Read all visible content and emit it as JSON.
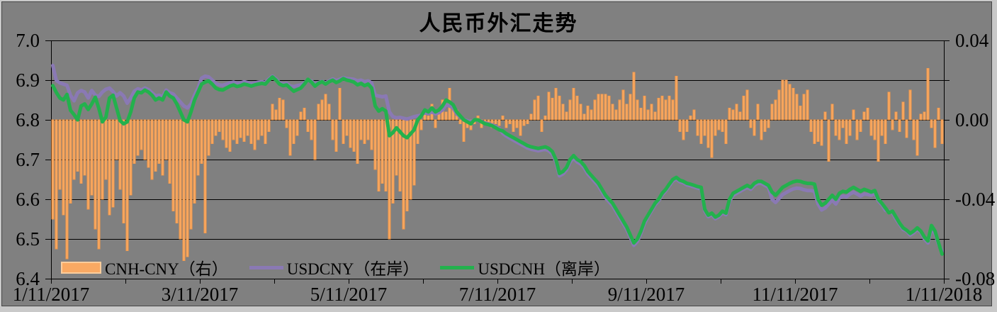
{
  "title": "人民币外汇走势",
  "colors": {
    "background": "#808080",
    "frame_light": "#c9c9c9",
    "frame_dark": "#474747",
    "grid": "#000000",
    "bar_fill": "#F9A963",
    "bar_edge": "#EF9647",
    "bar_swatch_border": "#FBCD9C",
    "usdcny_purple": "#8A79B4",
    "usdcnh_green": "#23B14D",
    "text": "#000000"
  },
  "chart_data": {
    "type": "bar+line combo, dual axis",
    "title": "人民币外汇走势",
    "grid": true,
    "legend_position": "bottom-left-inside",
    "x_tick_labels": [
      "1/11/2017",
      "3/11/2017",
      "5/11/2017",
      "7/11/2017",
      "9/11/2017",
      "11/11/2017",
      "1/11/2018"
    ],
    "left_axis": {
      "min": 6.4,
      "max": 7.0,
      "ticks": [
        "7.0",
        "6.9",
        "6.8",
        "6.7",
        "6.6",
        "6.5",
        "6.4"
      ]
    },
    "right_axis": {
      "min": -0.08,
      "max": 0.04,
      "ticks": [
        "0.04",
        "0.00",
        "-0.04",
        "-0.08"
      ]
    },
    "series": [
      {
        "name": "CNH-CNY（右）",
        "type": "bar",
        "axis": "right",
        "values": [
          -0.05,
          -0.065,
          -0.035,
          -0.048,
          -0.07,
          -0.042,
          -0.03,
          -0.026,
          -0.032,
          -0.028,
          -0.045,
          -0.038,
          -0.055,
          -0.065,
          -0.04,
          -0.03,
          -0.048,
          -0.044,
          -0.02,
          -0.035,
          -0.052,
          -0.066,
          -0.038,
          -0.022,
          -0.018,
          -0.015,
          -0.02,
          -0.024,
          -0.03,
          -0.026,
          -0.022,
          -0.028,
          -0.02,
          -0.032,
          -0.046,
          -0.052,
          -0.06,
          -0.071,
          -0.069,
          -0.055,
          -0.042,
          -0.028,
          -0.022,
          -0.057,
          -0.018,
          -0.012,
          -0.008,
          -0.006,
          -0.01,
          -0.014,
          -0.016,
          -0.01,
          -0.012,
          -0.009,
          -0.011,
          -0.008,
          -0.012,
          -0.015,
          -0.01,
          -0.008,
          -0.012,
          -0.006,
          0.008,
          0.005,
          0.011,
          0.01,
          -0.004,
          -0.018,
          -0.012,
          -0.008,
          0.004,
          0.006,
          -0.006,
          -0.01,
          -0.02,
          0.008,
          0.01,
          0.013,
          0.008,
          -0.01,
          -0.016,
          0.016,
          -0.012,
          -0.008,
          -0.014,
          -0.016,
          -0.022,
          -0.01,
          -0.012,
          -0.01,
          -0.015,
          -0.025,
          -0.036,
          -0.032,
          -0.036,
          -0.06,
          -0.042,
          -0.028,
          -0.036,
          -0.055,
          -0.046,
          -0.04,
          -0.033,
          -0.012,
          -0.005,
          0.005,
          0.002,
          0.008,
          -0.004,
          0.005,
          0.01,
          0.004,
          0.016,
          0.008,
          0.005,
          -0.002,
          -0.011,
          -0.004,
          -0.005,
          -0.002,
          0.002,
          -0.004,
          -0.002,
          -0.003,
          -0.004,
          -0.002,
          -0.003,
          0.002,
          -0.004,
          -0.002,
          -0.006,
          -0.004,
          -0.008,
          -0.003,
          -0.002,
          0.003,
          0.01,
          0.012,
          -0.006,
          0.002,
          0.014,
          0.011,
          0.016,
          0.012,
          0.008,
          0.004,
          0.01,
          0.016,
          0.012,
          0.008,
          0.003,
          0.007,
          0.005,
          0.01,
          0.013,
          0.013,
          0.013,
          0.012,
          0.008,
          0.005,
          0.01,
          0.015,
          0.008,
          0.013,
          0.024,
          0.01,
          0.006,
          0.012,
          0.005,
          0.008,
          0.004,
          0.011,
          0.012,
          0.01,
          0.012,
          0.01,
          0.022,
          -0.006,
          -0.01,
          -0.006,
          0.002,
          0.005,
          -0.008,
          -0.012,
          -0.008,
          -0.014,
          -0.019,
          -0.008,
          -0.005,
          -0.006,
          -0.012,
          0.006,
          0.005,
          0.008,
          0.004,
          0.012,
          0.015,
          -0.004,
          -0.008,
          0.008,
          -0.01,
          -0.006,
          -0.004,
          0.008,
          0.01,
          0.015,
          0.02,
          0.02,
          0.018,
          0.016,
          0.013,
          0.007,
          0.013,
          0.015,
          -0.006,
          -0.012,
          -0.011,
          -0.013,
          0.004,
          -0.021,
          0.008,
          -0.008,
          -0.01,
          -0.004,
          -0.012,
          -0.008,
          0.005,
          -0.01,
          -0.006,
          0.004,
          0.006,
          -0.008,
          -0.01,
          -0.021,
          -0.008,
          -0.012,
          0.014,
          -0.005,
          0.004,
          -0.006,
          0.009,
          -0.009,
          0.015,
          -0.01,
          -0.018,
          0.003,
          0.004,
          0.026,
          -0.004,
          -0.014,
          0.006,
          -0.012
        ]
      },
      {
        "name": "USDCNY（在岸）",
        "type": "line",
        "axis": "left",
        "values": [
          6.937,
          6.899,
          6.893,
          6.89,
          6.887,
          6.862,
          6.848,
          6.868,
          6.874,
          6.87,
          6.855,
          6.874,
          6.862,
          6.859,
          6.87,
          6.877,
          6.88,
          6.871,
          6.86,
          6.868,
          6.86,
          6.842,
          6.855,
          6.872,
          6.878,
          6.875,
          6.88,
          6.876,
          6.868,
          6.86,
          6.862,
          6.858,
          6.875,
          6.868,
          6.865,
          6.855,
          6.845,
          6.835,
          6.83,
          6.84,
          6.862,
          6.88,
          6.905,
          6.91,
          6.908,
          6.9,
          6.892,
          6.888,
          6.887,
          6.89,
          6.893,
          6.895,
          6.892,
          6.893,
          6.896,
          6.894,
          6.891,
          6.893,
          6.895,
          6.896,
          6.894,
          6.903,
          6.91,
          6.903,
          6.893,
          6.89,
          6.892,
          6.885,
          6.884,
          6.886,
          6.888,
          6.893,
          6.9,
          6.898,
          6.89,
          6.894,
          6.897,
          6.893,
          6.898,
          6.903,
          6.899,
          6.902,
          6.906,
          6.904,
          6.903,
          6.902,
          6.898,
          6.9,
          6.896,
          6.898,
          6.893,
          6.862,
          6.86,
          6.858,
          6.86,
          6.82,
          6.808,
          6.805,
          6.806,
          6.804,
          6.802,
          6.805,
          6.808,
          6.81,
          6.812,
          6.818,
          6.816,
          6.82,
          6.815,
          6.818,
          6.825,
          6.838,
          6.835,
          6.83,
          6.815,
          6.808,
          6.8,
          6.798,
          6.795,
          6.8,
          6.799,
          6.796,
          6.792,
          6.79,
          6.787,
          6.783,
          6.778,
          6.766,
          6.759,
          6.754,
          6.749,
          6.744,
          6.739,
          6.734,
          6.729,
          6.726,
          6.724,
          6.722,
          6.724,
          6.726,
          6.722,
          6.714,
          6.694,
          6.659,
          6.664,
          6.674,
          6.694,
          6.704,
          6.694,
          6.689,
          6.679,
          6.664,
          6.654,
          6.644,
          6.634,
          6.619,
          6.604,
          6.594,
          6.584,
          6.569,
          6.554,
          6.539,
          6.524,
          6.504,
          6.484,
          6.494,
          6.514,
          6.539,
          6.556,
          6.571,
          6.586,
          6.596,
          6.611,
          6.621,
          6.634,
          6.646,
          6.651,
          6.644,
          6.641,
          6.636,
          6.634,
          6.631,
          6.628,
          6.626,
          6.571,
          6.556,
          6.561,
          6.551,
          6.556,
          6.566,
          6.561,
          6.595,
          6.61,
          6.615,
          6.62,
          6.625,
          6.63,
          6.625,
          6.635,
          6.64,
          6.64,
          6.635,
          6.63,
          6.6,
          6.592,
          6.602,
          6.612,
          6.617,
          6.622,
          6.626,
          6.628,
          6.627,
          6.624,
          6.622,
          6.622,
          6.62,
          6.588,
          6.573,
          6.578,
          6.588,
          6.598,
          6.588,
          6.603,
          6.608,
          6.606,
          6.613,
          6.618,
          6.613,
          6.608,
          6.613,
          6.612,
          6.61,
          6.616,
          6.596,
          6.586,
          6.572,
          6.57,
          6.566,
          6.55,
          6.537,
          6.524,
          6.52,
          6.51,
          6.516,
          6.524,
          6.517,
          6.5,
          6.49,
          6.526,
          6.514,
          6.486,
          6.47
        ]
      },
      {
        "name": "USDCNH（离岸）",
        "type": "line",
        "axis": "left",
        "values": [
          6.886,
          6.869,
          6.855,
          6.85,
          6.864,
          6.824,
          6.813,
          6.8,
          6.835,
          6.84,
          6.826,
          6.84,
          6.857,
          6.829,
          6.795,
          6.807,
          6.855,
          6.862,
          6.83,
          6.798,
          6.79,
          6.795,
          6.82,
          6.855,
          6.87,
          6.868,
          6.875,
          6.87,
          6.862,
          6.85,
          6.855,
          6.85,
          6.87,
          6.86,
          6.855,
          6.84,
          6.82,
          6.8,
          6.795,
          6.82,
          6.85,
          6.87,
          6.89,
          6.895,
          6.898,
          6.89,
          6.88,
          6.876,
          6.875,
          6.88,
          6.885,
          6.888,
          6.884,
          6.886,
          6.89,
          6.888,
          6.885,
          6.888,
          6.89,
          6.892,
          6.89,
          6.9,
          6.908,
          6.9,
          6.89,
          6.886,
          6.888,
          6.88,
          6.872,
          6.876,
          6.88,
          6.89,
          6.902,
          6.895,
          6.885,
          6.892,
          6.896,
          6.89,
          6.896,
          6.9,
          6.894,
          6.898,
          6.904,
          6.9,
          6.898,
          6.895,
          6.888,
          6.892,
          6.886,
          6.89,
          6.88,
          6.835,
          6.822,
          6.828,
          6.822,
          6.76,
          6.768,
          6.78,
          6.77,
          6.76,
          6.755,
          6.765,
          6.775,
          6.8,
          6.81,
          6.825,
          6.82,
          6.83,
          6.82,
          6.825,
          6.835,
          6.85,
          6.845,
          6.838,
          6.82,
          6.81,
          6.8,
          6.795,
          6.79,
          6.8,
          6.8,
          6.795,
          6.79,
          6.788,
          6.785,
          6.78,
          6.775,
          6.772,
          6.765,
          6.76,
          6.755,
          6.75,
          6.745,
          6.74,
          6.735,
          6.732,
          6.73,
          6.728,
          6.73,
          6.732,
          6.728,
          6.72,
          6.7,
          6.665,
          6.67,
          6.68,
          6.7,
          6.71,
          6.7,
          6.695,
          6.685,
          6.67,
          6.66,
          6.65,
          6.64,
          6.625,
          6.61,
          6.6,
          6.59,
          6.575,
          6.56,
          6.545,
          6.53,
          6.51,
          6.49,
          6.5,
          6.52,
          6.545,
          6.56,
          6.575,
          6.59,
          6.6,
          6.615,
          6.625,
          6.638,
          6.65,
          6.655,
          6.648,
          6.645,
          6.64,
          6.638,
          6.635,
          6.632,
          6.63,
          6.575,
          6.56,
          6.565,
          6.555,
          6.56,
          6.57,
          6.565,
          6.6,
          6.615,
          6.62,
          6.625,
          6.63,
          6.635,
          6.63,
          6.64,
          6.645,
          6.645,
          6.64,
          6.635,
          6.618,
          6.61,
          6.62,
          6.63,
          6.635,
          6.64,
          6.644,
          6.646,
          6.645,
          6.642,
          6.64,
          6.64,
          6.638,
          6.6,
          6.585,
          6.59,
          6.6,
          6.61,
          6.6,
          6.615,
          6.62,
          6.618,
          6.625,
          6.63,
          6.625,
          6.62,
          6.625,
          6.622,
          6.618,
          6.622,
          6.6,
          6.59,
          6.578,
          6.566,
          6.57,
          6.555,
          6.54,
          6.528,
          6.522,
          6.514,
          6.52,
          6.528,
          6.52,
          6.505,
          6.495,
          6.534,
          6.52,
          6.49,
          6.462
        ]
      }
    ]
  }
}
